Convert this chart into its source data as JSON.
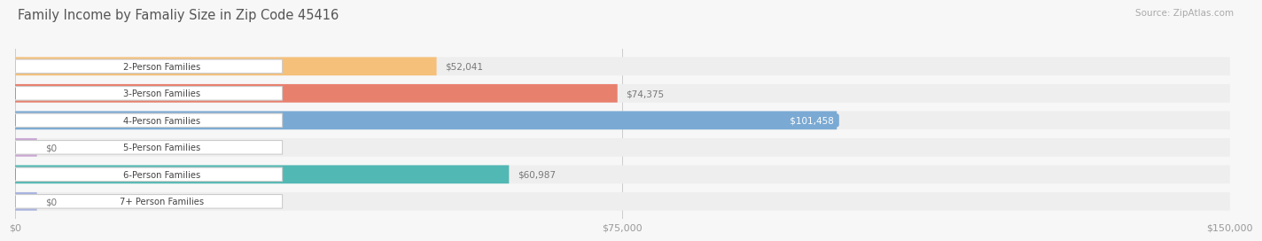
{
  "title": "Family Income by Famaliy Size in Zip Code 45416",
  "source": "Source: ZipAtlas.com",
  "categories": [
    "2-Person Families",
    "3-Person Families",
    "4-Person Families",
    "5-Person Families",
    "6-Person Families",
    "7+ Person Families"
  ],
  "values": [
    52041,
    74375,
    101458,
    0,
    60987,
    0
  ],
  "bar_colors": [
    "#f5c07a",
    "#e8806e",
    "#7aaad4",
    "#c9a8d4",
    "#52b8b4",
    "#a8b4e0"
  ],
  "max_value": 150000,
  "x_ticks": [
    0,
    75000,
    150000
  ],
  "x_tick_labels": [
    "$0",
    "$75,000",
    "$150,000"
  ],
  "background_color": "#f7f7f7",
  "bar_bg_color": "#eeeeee",
  "title_color": "#555555",
  "source_color": "#aaaaaa",
  "value_labels": [
    "$52,041",
    "$74,375",
    "$101,458",
    "$0",
    "$60,987",
    "$0"
  ],
  "label_inside_bar": [
    false,
    false,
    true,
    false,
    false,
    false
  ]
}
